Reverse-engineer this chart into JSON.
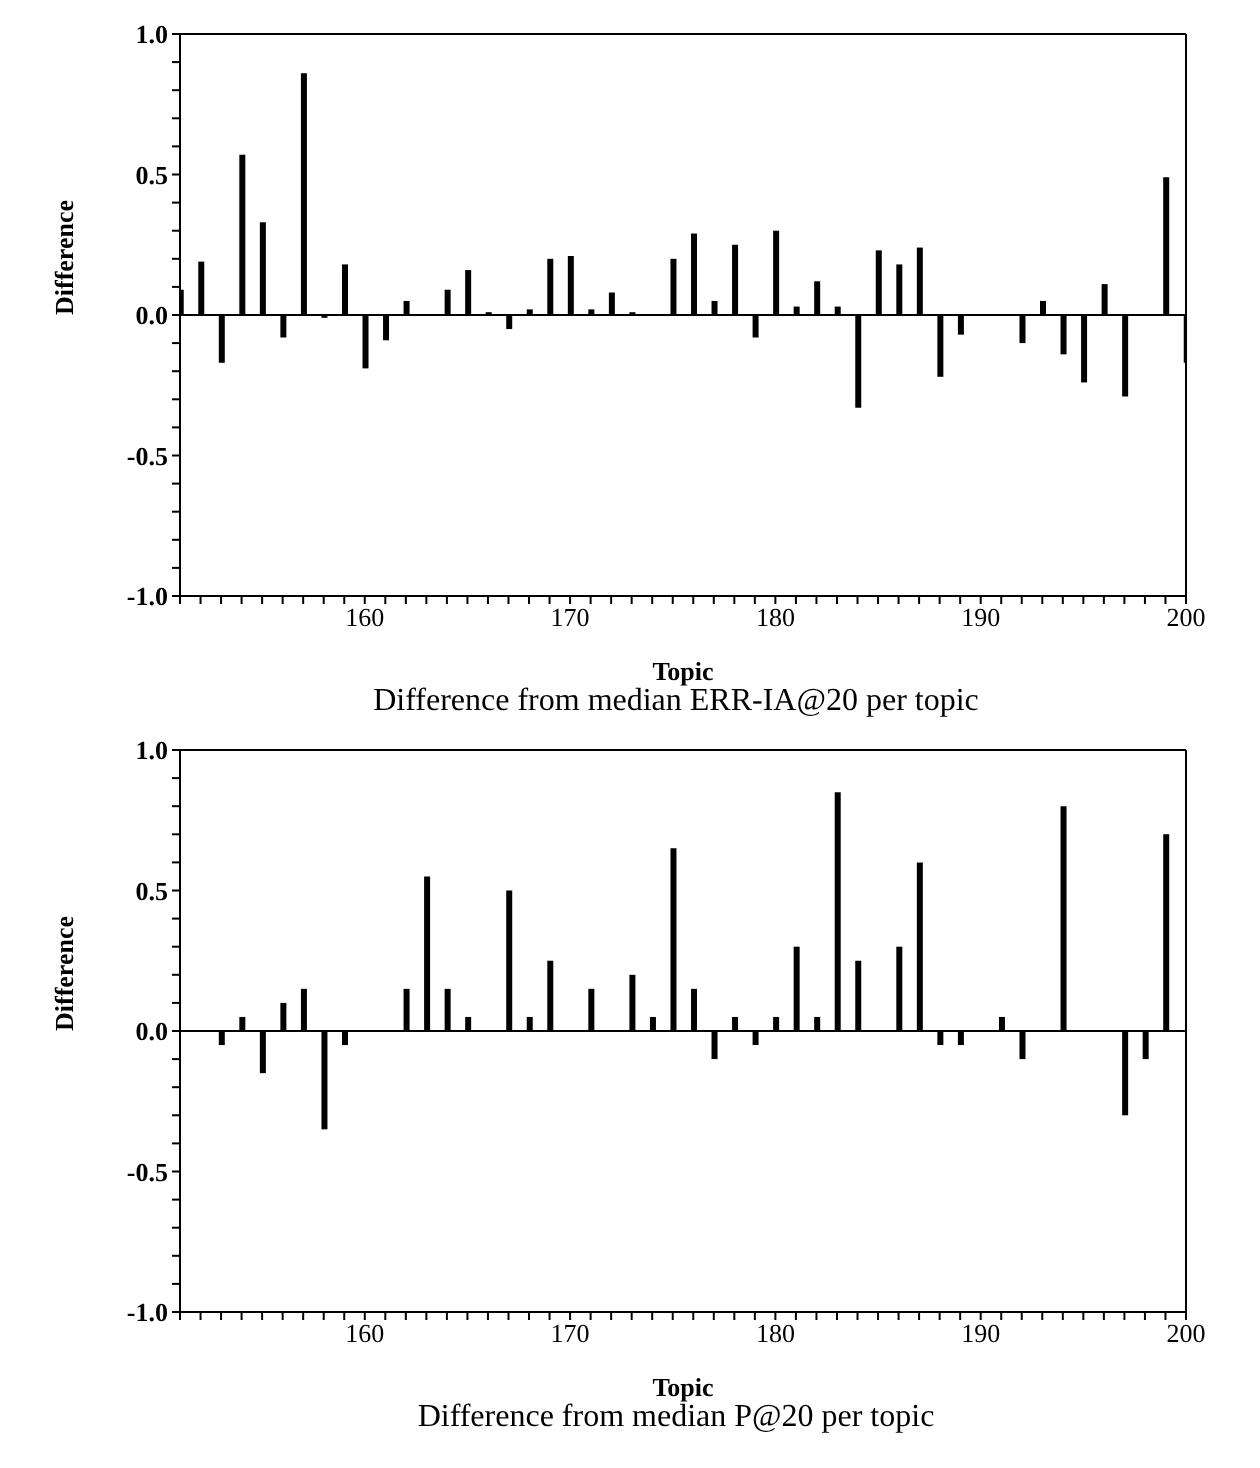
{
  "chart_data": [
    {
      "type": "bar",
      "title": "Difference from median ERR-IA@20 per topic",
      "xlabel": "Topic",
      "ylabel": "Difference",
      "color": "#000000",
      "x": [
        151,
        152,
        153,
        154,
        155,
        156,
        157,
        158,
        159,
        160,
        161,
        162,
        164,
        165,
        166,
        167,
        168,
        169,
        170,
        171,
        172,
        173,
        175,
        176,
        177,
        178,
        179,
        180,
        181,
        182,
        183,
        184,
        185,
        186,
        187,
        188,
        189,
        192,
        193,
        194,
        195,
        196,
        197,
        199,
        200
      ],
      "values": [
        0.09,
        0.19,
        -0.17,
        0.57,
        0.33,
        -0.08,
        0.86,
        -0.01,
        0.18,
        -0.19,
        -0.09,
        0.05,
        0.09,
        0.16,
        0.01,
        -0.05,
        0.02,
        0.2,
        0.21,
        0.02,
        0.08,
        0.01,
        0.2,
        0.29,
        0.05,
        0.25,
        -0.08,
        0.3,
        0.03,
        0.12,
        0.03,
        -0.33,
        0.23,
        0.18,
        0.24,
        -0.22,
        -0.07,
        -0.1,
        0.05,
        -0.14,
        -0.24,
        0.11,
        -0.29,
        0.49,
        -0.17
      ],
      "xlim": [
        151,
        200
      ],
      "xticks": [
        {
          "value": 151,
          "label": null
        },
        {
          "value": 152,
          "label": null
        },
        {
          "value": 153,
          "label": null
        },
        {
          "value": 154,
          "label": null
        },
        {
          "value": 155,
          "label": null
        },
        {
          "value": 156,
          "label": null
        },
        {
          "value": 157,
          "label": null
        },
        {
          "value": 158,
          "label": null
        },
        {
          "value": 159,
          "label": null
        },
        160,
        {
          "value": 161,
          "label": null
        },
        {
          "value": 162,
          "label": null
        },
        {
          "value": 163,
          "label": null
        },
        {
          "value": 164,
          "label": null
        },
        {
          "value": 165,
          "label": null
        },
        {
          "value": 166,
          "label": null
        },
        {
          "value": 167,
          "label": null
        },
        {
          "value": 168,
          "label": null
        },
        {
          "value": 169,
          "label": null
        },
        170,
        {
          "value": 171,
          "label": null
        },
        {
          "value": 172,
          "label": null
        },
        {
          "value": 173,
          "label": null
        },
        {
          "value": 174,
          "label": null
        },
        {
          "value": 175,
          "label": null
        },
        {
          "value": 176,
          "label": null
        },
        {
          "value": 177,
          "label": null
        },
        {
          "value": 178,
          "label": null
        },
        {
          "value": 179,
          "label": null
        },
        180,
        {
          "value": 181,
          "label": null
        },
        {
          "value": 182,
          "label": null
        },
        {
          "value": 183,
          "label": null
        },
        {
          "value": 184,
          "label": null
        },
        {
          "value": 185,
          "label": null
        },
        {
          "value": 186,
          "label": null
        },
        {
          "value": 187,
          "label": null
        },
        {
          "value": 188,
          "label": null
        },
        {
          "value": 189,
          "label": null
        },
        190,
        {
          "value": 191,
          "label": null
        },
        {
          "value": 192,
          "label": null
        },
        {
          "value": 193,
          "label": null
        },
        {
          "value": 194,
          "label": null
        },
        {
          "value": 195,
          "label": null
        },
        {
          "value": 196,
          "label": null
        },
        {
          "value": 197,
          "label": null
        },
        {
          "value": 198,
          "label": null
        },
        {
          "value": 199,
          "label": null
        },
        200
      ],
      "ylim": [
        -1,
        1
      ],
      "yticks": [
        {
          "value": -1,
          "label": "-1.0"
        },
        {
          "value": -0.9,
          "label": null
        },
        {
          "value": -0.8,
          "label": null
        },
        {
          "value": -0.7,
          "label": null
        },
        {
          "value": -0.6,
          "label": null
        },
        {
          "value": -0.5,
          "label": "-0.5"
        },
        {
          "value": -0.4,
          "label": null
        },
        {
          "value": -0.3,
          "label": null
        },
        {
          "value": -0.2,
          "label": null
        },
        {
          "value": -0.1,
          "label": null
        },
        {
          "value": 0,
          "label": "0.0"
        },
        {
          "value": 0.1,
          "label": null
        },
        {
          "value": 0.2,
          "label": null
        },
        {
          "value": 0.3,
          "label": null
        },
        {
          "value": 0.4,
          "label": null
        },
        {
          "value": 0.5,
          "label": "0.5"
        },
        {
          "value": 0.6,
          "label": null
        },
        {
          "value": 0.7,
          "label": null
        },
        {
          "value": 0.8,
          "label": null
        },
        {
          "value": 0.9,
          "label": null
        },
        {
          "value": 1,
          "label": "1.0"
        }
      ]
    },
    {
      "type": "bar",
      "title": "Difference from median P@20 per topic",
      "xlabel": "Topic",
      "ylabel": "Difference",
      "color": "#000000",
      "x": [
        153,
        154,
        155,
        156,
        157,
        158,
        159,
        162,
        163,
        164,
        165,
        167,
        168,
        169,
        171,
        173,
        174,
        175,
        176,
        177,
        178,
        179,
        180,
        181,
        182,
        183,
        184,
        186,
        187,
        188,
        189,
        191,
        192,
        194,
        197,
        198,
        199
      ],
      "values": [
        -0.05,
        0.05,
        -0.15,
        0.1,
        0.15,
        -0.35,
        -0.05,
        0.15,
        0.55,
        0.15,
        0.05,
        0.5,
        0.05,
        0.25,
        0.15,
        0.2,
        0.05,
        0.65,
        0.15,
        -0.1,
        0.05,
        -0.05,
        0.05,
        0.3,
        0.05,
        0.85,
        0.25,
        0.3,
        0.6,
        -0.05,
        -0.05,
        0.05,
        -0.1,
        0.8,
        -0.3,
        -0.1,
        0.7
      ],
      "xlim": [
        151,
        200
      ],
      "xticks": [
        {
          "value": 151,
          "label": null
        },
        {
          "value": 152,
          "label": null
        },
        {
          "value": 153,
          "label": null
        },
        {
          "value": 154,
          "label": null
        },
        {
          "value": 155,
          "label": null
        },
        {
          "value": 156,
          "label": null
        },
        {
          "value": 157,
          "label": null
        },
        {
          "value": 158,
          "label": null
        },
        {
          "value": 159,
          "label": null
        },
        160,
        {
          "value": 161,
          "label": null
        },
        {
          "value": 162,
          "label": null
        },
        {
          "value": 163,
          "label": null
        },
        {
          "value": 164,
          "label": null
        },
        {
          "value": 165,
          "label": null
        },
        {
          "value": 166,
          "label": null
        },
        {
          "value": 167,
          "label": null
        },
        {
          "value": 168,
          "label": null
        },
        {
          "value": 169,
          "label": null
        },
        170,
        {
          "value": 171,
          "label": null
        },
        {
          "value": 172,
          "label": null
        },
        {
          "value": 173,
          "label": null
        },
        {
          "value": 174,
          "label": null
        },
        {
          "value": 175,
          "label": null
        },
        {
          "value": 176,
          "label": null
        },
        {
          "value": 177,
          "label": null
        },
        {
          "value": 178,
          "label": null
        },
        {
          "value": 179,
          "label": null
        },
        180,
        {
          "value": 181,
          "label": null
        },
        {
          "value": 182,
          "label": null
        },
        {
          "value": 183,
          "label": null
        },
        {
          "value": 184,
          "label": null
        },
        {
          "value": 185,
          "label": null
        },
        {
          "value": 186,
          "label": null
        },
        {
          "value": 187,
          "label": null
        },
        {
          "value": 188,
          "label": null
        },
        {
          "value": 189,
          "label": null
        },
        190,
        {
          "value": 191,
          "label": null
        },
        {
          "value": 192,
          "label": null
        },
        {
          "value": 193,
          "label": null
        },
        {
          "value": 194,
          "label": null
        },
        {
          "value": 195,
          "label": null
        },
        {
          "value": 196,
          "label": null
        },
        {
          "value": 197,
          "label": null
        },
        {
          "value": 198,
          "label": null
        },
        {
          "value": 199,
          "label": null
        },
        200
      ],
      "ylim": [
        -1,
        1
      ],
      "yticks": [
        {
          "value": -1,
          "label": "-1.0"
        },
        {
          "value": -0.9,
          "label": null
        },
        {
          "value": -0.8,
          "label": null
        },
        {
          "value": -0.7,
          "label": null
        },
        {
          "value": -0.6,
          "label": null
        },
        {
          "value": -0.5,
          "label": "-0.5"
        },
        {
          "value": -0.4,
          "label": null
        },
        {
          "value": -0.3,
          "label": null
        },
        {
          "value": -0.2,
          "label": null
        },
        {
          "value": -0.1,
          "label": null
        },
        {
          "value": 0,
          "label": "0.0"
        },
        {
          "value": 0.1,
          "label": null
        },
        {
          "value": 0.2,
          "label": null
        },
        {
          "value": 0.3,
          "label": null
        },
        {
          "value": 0.4,
          "label": null
        },
        {
          "value": 0.5,
          "label": "0.5"
        },
        {
          "value": 0.6,
          "label": null
        },
        {
          "value": 0.7,
          "label": null
        },
        {
          "value": 0.8,
          "label": null
        },
        {
          "value": 0.9,
          "label": null
        },
        {
          "value": 1,
          "label": "1.0"
        }
      ]
    }
  ]
}
